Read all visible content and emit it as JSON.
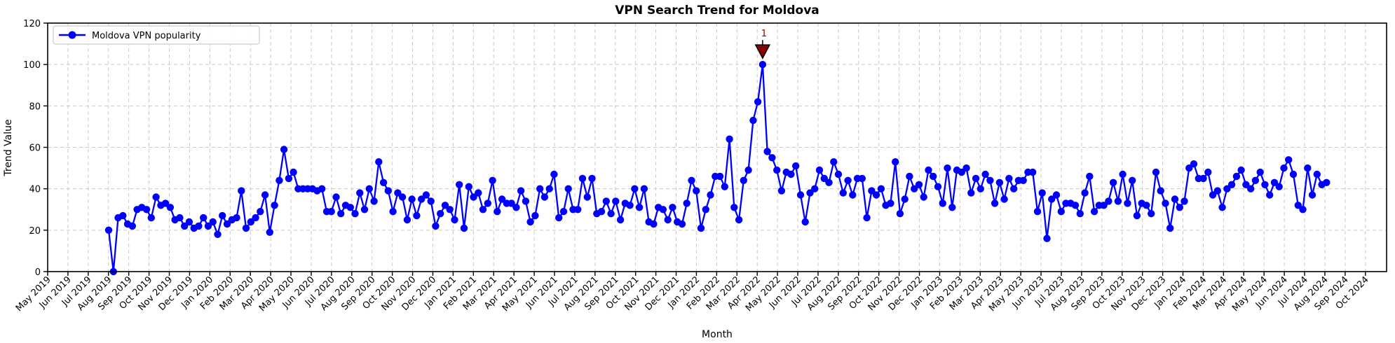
{
  "chart_data": {
    "type": "line",
    "title": "VPN Search Trend for Moldova",
    "xlabel": "Month",
    "ylabel": "Trend Value",
    "ylim": [
      0,
      120
    ],
    "yticks": [
      0,
      20,
      40,
      60,
      80,
      100,
      120
    ],
    "grid": true,
    "grid_style": "dashed",
    "x_tick_labels": [
      "May 2019",
      "Jun 2019",
      "Jul 2019",
      "Aug 2019",
      "Sep 2019",
      "Oct 2019",
      "Nov 2019",
      "Dec 2019",
      "Jan 2020",
      "Feb 2020",
      "Mar 2020",
      "Apr 2020",
      "May 2020",
      "Jun 2020",
      "Jul 2020",
      "Aug 2020",
      "Sep 2020",
      "Oct 2020",
      "Nov 2020",
      "Dec 2020",
      "Jan 2021",
      "Feb 2021",
      "Mar 2021",
      "Apr 2021",
      "May 2021",
      "Jun 2021",
      "Jul 2021",
      "Aug 2021",
      "Sep 2021",
      "Oct 2021",
      "Nov 2021",
      "Dec 2021",
      "Jan 2022",
      "Feb 2022",
      "Mar 2022",
      "Apr 2022",
      "May 2022",
      "Jun 2022",
      "Jul 2022",
      "Aug 2022",
      "Sep 2022",
      "Oct 2022",
      "Nov 2022",
      "Dec 2022",
      "Jan 2023",
      "Feb 2023",
      "Mar 2023",
      "Apr 2023",
      "May 2023",
      "Jun 2023",
      "Jul 2023",
      "Aug 2023",
      "Sep 2023",
      "Oct 2023",
      "Nov 2023",
      "Dec 2023",
      "Jan 2024",
      "Feb 2024",
      "Mar 2024",
      "Apr 2024",
      "May 2024",
      "Jun 2024",
      "Jul 2024",
      "Aug 2024",
      "Sep 2024",
      "Oct 2024"
    ],
    "legend": {
      "position": "upper-left",
      "entries": [
        {
          "label": "Moldova VPN popularity",
          "color": "#0000ff",
          "marker": "circle"
        }
      ]
    },
    "series": [
      {
        "name": "Moldova VPN popularity",
        "color": "#0000ff",
        "marker": "circle",
        "frequency": "weekly",
        "start_label": "Aug 2019",
        "end_label": "Aug 2024",
        "values": [
          20,
          0,
          26,
          27,
          23,
          22,
          30,
          31,
          30,
          26,
          36,
          32,
          33,
          31,
          25,
          26,
          22,
          24,
          21,
          22,
          26,
          22,
          24,
          18,
          27,
          23,
          25,
          26,
          39,
          21,
          24,
          26,
          29,
          37,
          19,
          32,
          44,
          59,
          45,
          48,
          40,
          40,
          40,
          40,
          39,
          40,
          29,
          29,
          36,
          28,
          32,
          31,
          28,
          38,
          30,
          40,
          34,
          53,
          43,
          39,
          29,
          38,
          36,
          25,
          35,
          27,
          35,
          37,
          34,
          22,
          28,
          32,
          30,
          25,
          42,
          21,
          41,
          36,
          38,
          30,
          33,
          44,
          29,
          35,
          33,
          33,
          31,
          39,
          34,
          24,
          27,
          40,
          36,
          40,
          47,
          26,
          29,
          40,
          30,
          30,
          45,
          36,
          45,
          28,
          29,
          34,
          28,
          34,
          25,
          33,
          32,
          40,
          31,
          40,
          24,
          23,
          31,
          30,
          25,
          31,
          24,
          23,
          33,
          44,
          39,
          21,
          30,
          37,
          46,
          46,
          41,
          64,
          31,
          25,
          44,
          49,
          73,
          82,
          100,
          58,
          55,
          49,
          39,
          48,
          47,
          51,
          37,
          24,
          38,
          40,
          49,
          45,
          43,
          53,
          47,
          38,
          44,
          37,
          45,
          45,
          26,
          39,
          37,
          40,
          32,
          33,
          53,
          28,
          35,
          46,
          40,
          42,
          36,
          49,
          46,
          41,
          33,
          50,
          31,
          49,
          48,
          50,
          38,
          45,
          40,
          47,
          44,
          33,
          43,
          35,
          45,
          40,
          44,
          44,
          48,
          48,
          29,
          38,
          16,
          35,
          37,
          29,
          33,
          33,
          32,
          28,
          38,
          46,
          29,
          32,
          32,
          34,
          43,
          34,
          47,
          33,
          44,
          27,
          33,
          32,
          28,
          48,
          39,
          33,
          21,
          35,
          31,
          34,
          50,
          52,
          45,
          45,
          48,
          37,
          39,
          31,
          40,
          42,
          46,
          49,
          42,
          40,
          44,
          48,
          42,
          37,
          43,
          41,
          50,
          54,
          47,
          32,
          30,
          50,
          37,
          47,
          42,
          43
        ]
      }
    ],
    "annotation": {
      "text": "1",
      "color": "#8b0000",
      "marker": "triangle-down",
      "at_value": 100,
      "near_label": "Apr 2022"
    },
    "colors": {
      "line": "#0000ff",
      "grid": "#c9c9c9",
      "spine": "#000000",
      "annotation": "#8b0000",
      "background": "#ffffff"
    }
  }
}
